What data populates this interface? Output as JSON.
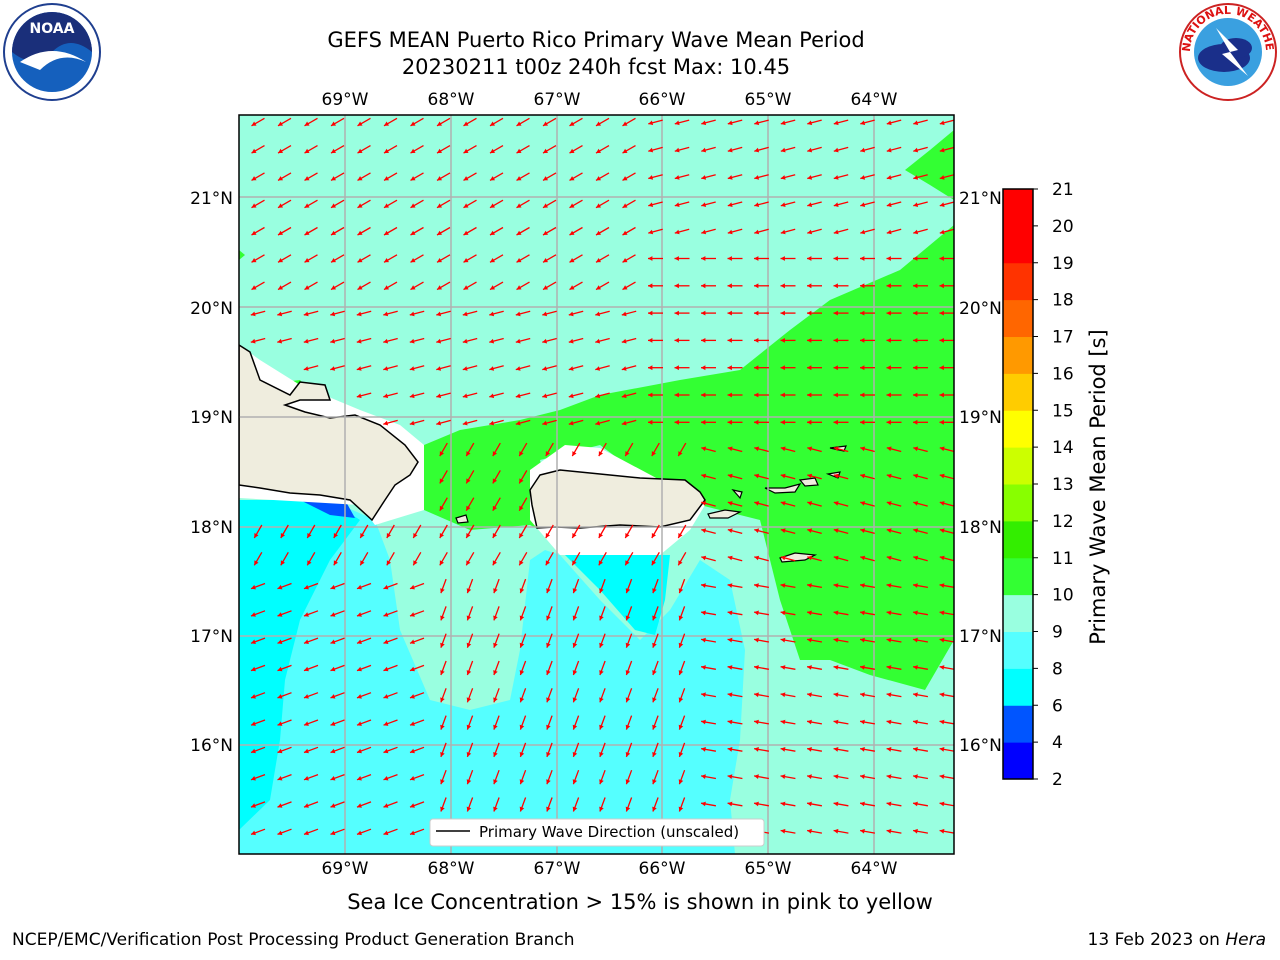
{
  "title": {
    "line1": "GEFS MEAN Puerto Rico Primary Wave Mean Period",
    "line2": "20230211 t00z 240h fcst   Max: 10.45"
  },
  "caption": "Sea Ice Concentration > 15% is shown in pink to yellow",
  "footer": {
    "left": "NCEP/EMC/Verification Post Processing Product Generation Branch",
    "right_prefix": "13 Feb 2023 on ",
    "right_machine": "Hera"
  },
  "legend": {
    "label": "Primary Wave Direction (unscaled)"
  },
  "map": {
    "lon_labels": [
      "69°W",
      "68°W",
      "67°W",
      "66°W",
      "65°W",
      "64°W"
    ],
    "lat_labels": [
      "21°N",
      "20°N",
      "19°N",
      "18°N",
      "17°N",
      "16°N"
    ]
  },
  "colorbar": {
    "label": "Primary Wave Mean Period [s]",
    "ticks": [
      "2",
      "4",
      "6",
      "8",
      "9",
      "10",
      "11",
      "12",
      "13",
      "14",
      "15",
      "16",
      "17",
      "18",
      "19",
      "20",
      "21"
    ],
    "colors": [
      "#0000ff",
      "#0055ff",
      "#00ffff",
      "#55ffff",
      "#99ffe0",
      "#33ff33",
      "#33ee00",
      "#88ff00",
      "#ccff00",
      "#ffff00",
      "#ffcc00",
      "#ff9900",
      "#ff6600",
      "#ff3300",
      "#ff0000",
      "#ff0000"
    ]
  },
  "colors": {
    "land": "#efedde",
    "arrow": "#ff0000",
    "grid": "#b0b0b0"
  },
  "logos": {
    "noaa_text": "NOAA",
    "nws_text": "NATIONAL WEATHER SERVICE"
  }
}
